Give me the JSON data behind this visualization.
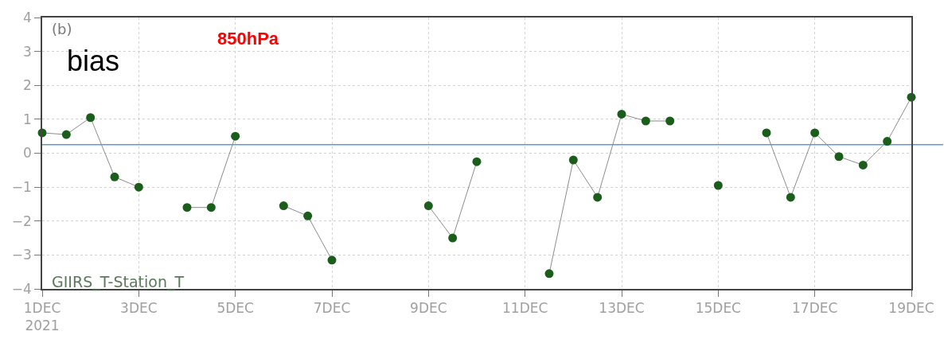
{
  "chart_data": {
    "type": "line",
    "annotations": [
      "(b)",
      "bias",
      "850hPa",
      "GIIRS_T-Station_T"
    ],
    "x": [
      "2021-12-01T00:00",
      "2021-12-01T12:00",
      "2021-12-02T00:00",
      "2021-12-02T12:00",
      "2021-12-03T00:00",
      "2021-12-03T12:00",
      "2021-12-04T00:00",
      "2021-12-04T12:00",
      "2021-12-05T00:00",
      "2021-12-05T12:00",
      "2021-12-06T00:00",
      "2021-12-06T12:00",
      "2021-12-07T00:00",
      "2021-12-07T12:00",
      "2021-12-08T00:00",
      "2021-12-08T12:00",
      "2021-12-09T00:00",
      "2021-12-09T12:00",
      "2021-12-10T00:00",
      "2021-12-10T12:00",
      "2021-12-11T00:00",
      "2021-12-11T12:00",
      "2021-12-12T00:00",
      "2021-12-12T12:00",
      "2021-12-13T00:00",
      "2021-12-13T12:00",
      "2021-12-14T00:00",
      "2021-12-14T12:00",
      "2021-12-15T00:00",
      "2021-12-15T12:00",
      "2021-12-16T00:00",
      "2021-12-16T12:00",
      "2021-12-17T00:00",
      "2021-12-17T12:00",
      "2021-12-18T00:00",
      "2021-12-18T12:00",
      "2021-12-19T00:00"
    ],
    "series": [
      {
        "color": "#1b5e1b",
        "values": [
          0.6,
          0.55,
          1.05,
          -0.7,
          -1.0,
          null,
          -1.6,
          -1.6,
          0.5,
          null,
          -1.55,
          -1.85,
          -3.15,
          null,
          null,
          null,
          -1.55,
          -2.5,
          -0.25,
          null,
          null,
          -3.55,
          -0.2,
          -1.3,
          1.15,
          0.95,
          0.95,
          null,
          -0.95,
          null,
          0.6,
          -1.3,
          0.6,
          -0.1,
          -0.35,
          0.35,
          1.65
        ]
      }
    ],
    "xlim": [
      "2021-12-01",
      "2021-12-19"
    ],
    "xticks": [
      {
        "value": "2021-12-01",
        "label": "1DEC\n2021"
      },
      {
        "value": "2021-12-03",
        "label": "3DEC"
      },
      {
        "value": "2021-12-05",
        "label": "5DEC"
      },
      {
        "value": "2021-12-07",
        "label": "7DEC"
      },
      {
        "value": "2021-12-09",
        "label": "9DEC"
      },
      {
        "value": "2021-12-11",
        "label": "11DEC"
      },
      {
        "value": "2021-12-13",
        "label": "13DEC"
      },
      {
        "value": "2021-12-15",
        "label": "15DEC"
      },
      {
        "value": "2021-12-17",
        "label": "17DEC"
      },
      {
        "value": "2021-12-19",
        "label": "19DEC"
      }
    ],
    "ylim": [
      -4,
      4
    ],
    "yticks": [
      -4,
      -3,
      -2,
      -1,
      0,
      1,
      2,
      3,
      4
    ],
    "ref_lines": [
      {
        "axis": "y",
        "value": 0.25,
        "color": "#5b9bd5"
      }
    ],
    "grid": true,
    "marker": "circle",
    "line_style": "solid"
  }
}
